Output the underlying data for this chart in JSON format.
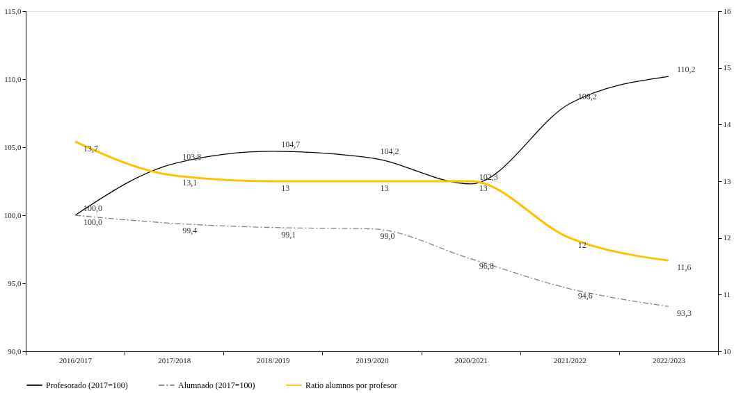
{
  "chart_data": {
    "type": "line",
    "categories": [
      "2016/2017",
      "2017/2018",
      "2018/2019",
      "2019/2020",
      "2020/2021",
      "2021/2022",
      "2022/2023"
    ],
    "series": [
      {
        "name": "Profesorado (2017=100)",
        "color": "#000000",
        "line_style": "solid",
        "values": [
          100.0,
          103.8,
          104.7,
          104.2,
          102.3,
          108.2,
          110.2
        ],
        "value_labels": [
          "100,0",
          "103,8",
          "104,7",
          "104,2",
          "102,3",
          "108,2",
          "110,2"
        ]
      },
      {
        "name": "Alumnado (2017=100)",
        "color": "#808080",
        "line_style": "dashed",
        "values": [
          100.0,
          99.4,
          99.1,
          99.0,
          96.8,
          94.6,
          93.3
        ],
        "value_labels": [
          "100,0",
          "99,4",
          "99,1",
          "99,0",
          "96,8",
          "94,6",
          "93,3"
        ]
      },
      {
        "name": "Ratio alumnos por profesor",
        "color": "#ffc000",
        "line_style": "solid",
        "axis": "y2",
        "values": [
          13.7,
          13.1,
          13,
          13,
          13,
          12,
          11.6
        ],
        "value_labels": [
          "13,7",
          "13,1",
          "13",
          "13",
          "13",
          "12",
          "11,6"
        ]
      }
    ],
    "ylim": [
      90,
      115
    ],
    "yticks": [
      {
        "value": 90,
        "label": "90,0"
      },
      {
        "value": 95,
        "label": "95,0"
      },
      {
        "value": 100,
        "label": "100,0"
      },
      {
        "value": 105,
        "label": "105,0"
      },
      {
        "value": 110,
        "label": "110,0"
      },
      {
        "value": 115,
        "label": "115,0"
      }
    ],
    "y2lim": [
      10,
      16
    ],
    "y2ticks": [
      10,
      11,
      12,
      13,
      14,
      15,
      16
    ],
    "grid": false,
    "legend": "bottom",
    "marker": "none"
  }
}
